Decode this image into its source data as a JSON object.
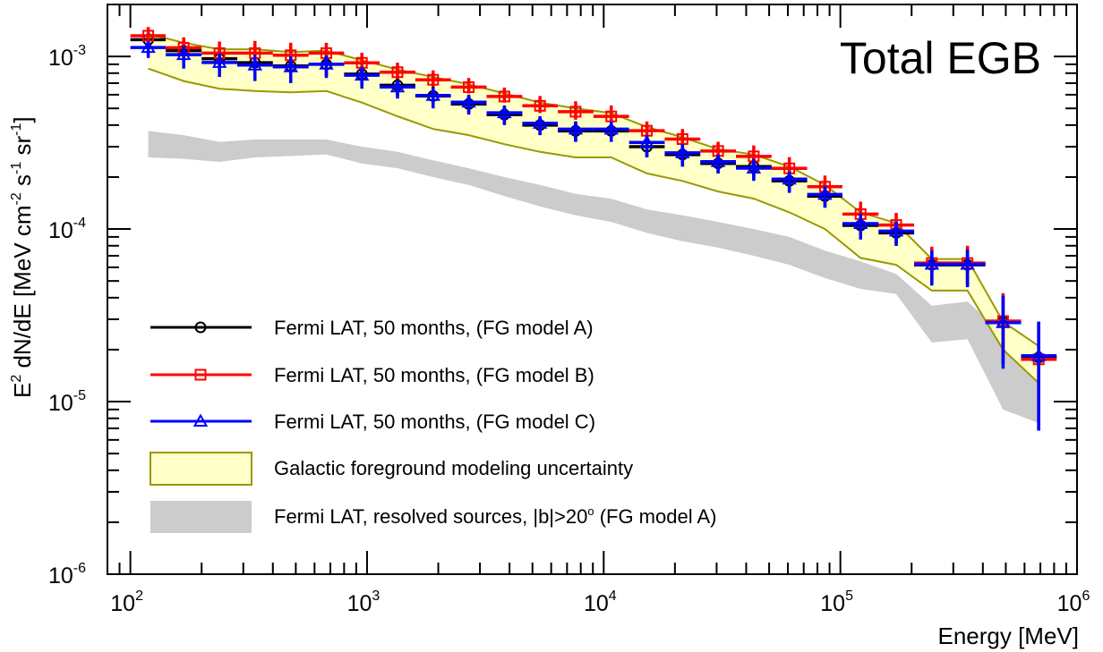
{
  "chart_data": {
    "type": "scatter",
    "title": "Total EGB",
    "xlabel": "Energy [MeV]",
    "ylabel_parts": [
      "E",
      "2",
      " dN/dE [MeV cm",
      "-2",
      " s",
      "-1",
      " sr",
      "-1",
      "]"
    ],
    "xscale": "log",
    "yscale": "log",
    "xlim": [
      80,
      1000000
    ],
    "ylim": [
      1e-06,
      0.002
    ],
    "x_ticks": [
      {
        "base": "10",
        "exp": "2",
        "value": 100
      },
      {
        "base": "10",
        "exp": "3",
        "value": 1000
      },
      {
        "base": "10",
        "exp": "4",
        "value": 10000
      },
      {
        "base": "10",
        "exp": "5",
        "value": 100000
      },
      {
        "base": "10",
        "exp": "6",
        "value": 1000000
      }
    ],
    "y_ticks": [
      {
        "base": "10",
        "exp": "-3",
        "value": 0.001
      },
      {
        "base": "10",
        "exp": "-4",
        "value": 0.0001
      },
      {
        "base": "10",
        "exp": "-5",
        "value": 1e-05
      },
      {
        "base": "10",
        "exp": "-6",
        "value": 1e-06
      }
    ],
    "bin_edges": [
      100,
      141,
      200,
      283,
      400,
      566,
      800,
      1130,
      1600,
      2260,
      3200,
      4530,
      6400,
      9050,
      12800,
      18100,
      25600,
      36200,
      51200,
      72400,
      102000,
      145000,
      205000,
      290000,
      410000,
      580000,
      820000
    ],
    "series": [
      {
        "name": "Fermi LAT, 50 months, (FG model A)",
        "color": "#000000",
        "marker": "circle",
        "x": [
          119,
          168,
          238,
          336,
          476,
          673,
          951,
          1345,
          1902,
          2690,
          3805,
          5381,
          7610,
          10762,
          15219,
          21523,
          30438,
          43046,
          60876,
          86092,
          121751,
          172181,
          243497,
          344354,
          486985,
          688697
        ],
        "y": [
          0.00125,
          0.00108,
          0.00097,
          0.00092,
          0.00088,
          0.0009,
          0.00079,
          0.00068,
          0.00059,
          0.00053,
          0.00046,
          0.0004,
          0.00037,
          0.00037,
          0.0003,
          0.00027,
          0.00024,
          0.00023,
          0.00019,
          0.000155,
          0.000105,
          9.5e-05,
          6.2e-05,
          6.2e-05,
          2.9e-05,
          1.8e-05
        ],
        "y_lo": [
          0.00113,
          0.00094,
          0.00083,
          0.00077,
          0.00073,
          0.00077,
          0.00068,
          0.00059,
          0.00051,
          0.00047,
          0.00041,
          0.00035,
          0.00032,
          0.00032,
          0.00026,
          0.00023,
          0.00021,
          0.000195,
          0.000163,
          0.000133,
          8.7e-05,
          8e-05,
          4.8e-05,
          4.7e-05,
          1.65e-05,
          6.8e-06
        ],
        "y_hi": [
          0.00137,
          0.00122,
          0.00111,
          0.00107,
          0.00103,
          0.00103,
          0.0009,
          0.00077,
          0.00067,
          0.00059,
          0.00051,
          0.00045,
          0.00042,
          0.00042,
          0.00034,
          0.00031,
          0.00027,
          0.000265,
          0.000217,
          0.000177,
          0.000123,
          0.00011,
          7.6e-05,
          7.7e-05,
          4.15e-05,
          2.9e-05
        ]
      },
      {
        "name": "Fermi LAT, 50 months, (FG model B)",
        "color": "#ff0000",
        "marker": "square",
        "x": [
          119,
          168,
          238,
          336,
          476,
          673,
          951,
          1345,
          1902,
          2690,
          3805,
          5381,
          7610,
          10762,
          15219,
          21523,
          30438,
          43046,
          60876,
          86092,
          121751,
          172181,
          243497,
          344354,
          486985,
          688697
        ],
        "y": [
          0.00135,
          0.00115,
          0.00107,
          0.00107,
          0.00104,
          0.00107,
          0.00094,
          0.00083,
          0.00075,
          0.00068,
          0.0006,
          0.00053,
          0.00049,
          0.00046,
          0.00038,
          0.00034,
          0.00029,
          0.00027,
          0.00023,
          0.00018,
          0.000125,
          0.000108,
          6.5e-05,
          6.5e-05,
          3e-05,
          1.8e-05
        ],
        "y_lo": [
          0.00122,
          0.00101,
          0.00092,
          0.00091,
          0.00088,
          0.00094,
          0.00083,
          0.00074,
          0.00067,
          0.00061,
          0.00054,
          0.00047,
          0.00043,
          0.0004,
          0.00034,
          0.0003,
          0.00026,
          0.000235,
          0.000199,
          0.000156,
          0.000106,
          9.2e-05,
          5.1e-05,
          5e-05,
          1.75e-05,
          6.8e-06
        ],
        "y_hi": [
          0.00148,
          0.00129,
          0.00122,
          0.00123,
          0.0012,
          0.0012,
          0.00105,
          0.00092,
          0.00083,
          0.00075,
          0.00066,
          0.00059,
          0.00055,
          0.00052,
          0.00042,
          0.00038,
          0.00032,
          0.000305,
          0.000261,
          0.000204,
          0.000144,
          0.000124,
          7.9e-05,
          8e-05,
          4.25e-05,
          2.9e-05
        ]
      },
      {
        "name": "Fermi LAT, 50 months, (FG model C)",
        "color": "#0000ff",
        "marker": "triangle",
        "x": [
          119,
          168,
          238,
          336,
          476,
          673,
          951,
          1345,
          1902,
          2690,
          3805,
          5381,
          7610,
          10762,
          15219,
          21523,
          30438,
          43046,
          60876,
          86092,
          121751,
          172181,
          243497,
          344354,
          486985,
          688697
        ],
        "y": [
          0.0011,
          0.001,
          0.0009,
          0.00087,
          0.00085,
          0.00088,
          0.00076,
          0.00065,
          0.00058,
          0.00053,
          0.00046,
          0.0004,
          0.00037,
          0.00037,
          0.00031,
          0.00027,
          0.00024,
          0.00022,
          0.00019,
          0.000155,
          0.000105,
          9.5e-05,
          6.1e-05,
          6.1e-05,
          2.8e-05,
          1.8e-05
        ],
        "y_lo": [
          0.00098,
          0.00085,
          0.00076,
          0.00072,
          0.0007,
          0.00075,
          0.00065,
          0.00057,
          0.0005,
          0.00046,
          0.0004,
          0.00035,
          0.00032,
          0.00032,
          0.00026,
          0.00023,
          0.00021,
          0.00019,
          0.000162,
          0.000133,
          8.7e-05,
          8e-05,
          4.7e-05,
          4.6e-05,
          1.55e-05,
          6.8e-06
        ],
        "y_hi": [
          0.00122,
          0.00115,
          0.00104,
          0.00102,
          0.001,
          0.00101,
          0.00087,
          0.00073,
          0.00066,
          0.0006,
          0.00052,
          0.00045,
          0.00042,
          0.00042,
          0.00035,
          0.00031,
          0.00027,
          0.000255,
          0.000216,
          0.000177,
          0.000123,
          0.00011,
          7.5e-05,
          7.6e-05,
          4.1e-05,
          2.9e-05
        ]
      }
    ],
    "bands": [
      {
        "name": "Galactic foreground modeling uncertainty",
        "fill": "#ffffc8",
        "stroke": "#999900",
        "x": [
          119,
          168,
          238,
          336,
          476,
          673,
          951,
          1345,
          1902,
          2690,
          3805,
          5381,
          7610,
          10762,
          15219,
          21523,
          30438,
          43046,
          60876,
          86092,
          121751,
          172181,
          243497,
          344354,
          486985,
          688697
        ],
        "upper": [
          0.00135,
          0.0012,
          0.0011,
          0.0011,
          0.00106,
          0.00108,
          0.00095,
          0.00084,
          0.00076,
          0.00069,
          0.00061,
          0.00054,
          0.0005,
          0.00047,
          0.00039,
          0.00034,
          0.00029,
          0.00027,
          0.00023,
          0.00018,
          0.000125,
          0.000108,
          6.7e-05,
          6.7e-05,
          2.9e-05,
          2.1e-05
        ],
        "lower": [
          0.00085,
          0.00072,
          0.00065,
          0.00063,
          0.00062,
          0.00063,
          0.00054,
          0.00045,
          0.00038,
          0.00035,
          0.00031,
          0.00028,
          0.00026,
          0.00026,
          0.00021,
          0.00019,
          0.000165,
          0.00015,
          0.000125,
          0.0001,
          6.8e-05,
          6.2e-05,
          4.4e-05,
          4.4e-05,
          2e-05,
          1.28e-05
        ]
      },
      {
        "name": "Fermi LAT, resolved sources, |b|>20",
        "name_suffix": "(FG model A)",
        "degree_symbol": "o",
        "fill": "#cccccc",
        "stroke": "none",
        "x": [
          119,
          168,
          238,
          336,
          476,
          673,
          951,
          1345,
          1902,
          2690,
          3805,
          5381,
          7610,
          10762,
          15219,
          21523,
          30438,
          43046,
          60876,
          86092,
          121751,
          172181,
          243497,
          344354,
          486985,
          688697
        ],
        "upper": [
          0.00037,
          0.00035,
          0.00032,
          0.00033,
          0.00033,
          0.00033,
          0.0003,
          0.00028,
          0.00025,
          0.000225,
          0.0002,
          0.00018,
          0.00016,
          0.00015,
          0.00013,
          0.00012,
          0.00011,
          0.0001,
          9e-05,
          7.5e-05,
          6.5e-05,
          5.5e-05,
          3.6e-05,
          3.8e-05,
          2.5e-05,
          2.1e-05
        ],
        "lower": [
          0.00026,
          0.000255,
          0.000245,
          0.00026,
          0.000265,
          0.00027,
          0.00024,
          0.000225,
          0.0002,
          0.00018,
          0.000155,
          0.000135,
          0.00012,
          0.00011,
          9.5e-05,
          8.5e-05,
          7.8e-05,
          7e-05,
          6.2e-05,
          5.2e-05,
          4.5e-05,
          4.2e-05,
          2.2e-05,
          2.3e-05,
          9e-06,
          7.5e-06
        ]
      }
    ],
    "legend": {
      "position": "bottom-left",
      "entries": [
        {
          "label": "Fermi LAT, 50 months, (FG model A)",
          "kind": "line-marker",
          "color": "#000000",
          "marker": "circle"
        },
        {
          "label": "Fermi LAT, 50 months, (FG model B)",
          "kind": "line-marker",
          "color": "#ff0000",
          "marker": "square"
        },
        {
          "label": "Fermi LAT, 50 months, (FG model C)",
          "kind": "line-marker",
          "color": "#0000ff",
          "marker": "triangle"
        },
        {
          "label": "Galactic foreground modeling uncertainty",
          "kind": "box",
          "fill": "#ffffc8",
          "stroke": "#999900"
        },
        {
          "label": "Fermi LAT, resolved sources, |b|>20",
          "suffix": "(FG model A)",
          "degree": "o",
          "kind": "box",
          "fill": "#cccccc",
          "stroke": "none"
        }
      ]
    }
  }
}
